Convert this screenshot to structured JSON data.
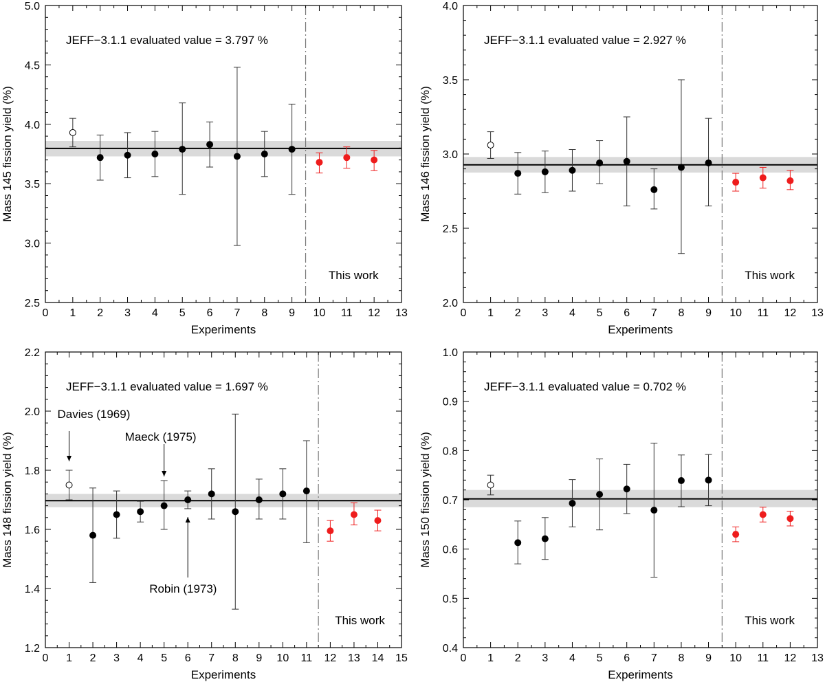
{
  "chart_data": [
    {
      "type": "scatter",
      "title": "",
      "xlabel": "Experiments",
      "ylabel": "Mass 145 fission yield (%)",
      "xlim": [
        0,
        13
      ],
      "ylim": [
        2.5,
        5.0
      ],
      "xticks": [
        "0",
        "1",
        "2",
        "3",
        "4",
        "5",
        "6",
        "7",
        "8",
        "9",
        "10",
        "11",
        "12",
        "13"
      ],
      "yticks": [
        "2.5",
        "3.0",
        "3.5",
        "4.0",
        "4.5",
        "5.0"
      ],
      "reference": {
        "label": "JEFF−3.1.1 evaluated value = 3.797 %",
        "value": 3.797,
        "band": [
          3.73,
          3.86
        ]
      },
      "divider_x": 9.5,
      "work_label": "This work",
      "points": [
        {
          "x": 1,
          "y": 3.93,
          "lo": 3.81,
          "hi": 4.05,
          "style": "open"
        },
        {
          "x": 2,
          "y": 3.72,
          "lo": 3.53,
          "hi": 3.91,
          "style": "filled"
        },
        {
          "x": 3,
          "y": 3.74,
          "lo": 3.55,
          "hi": 3.93,
          "style": "filled"
        },
        {
          "x": 4,
          "y": 3.75,
          "lo": 3.56,
          "hi": 3.94,
          "style": "filled"
        },
        {
          "x": 5,
          "y": 3.79,
          "lo": 3.41,
          "hi": 4.18,
          "style": "filled"
        },
        {
          "x": 6,
          "y": 3.83,
          "lo": 3.64,
          "hi": 4.02,
          "style": "filled"
        },
        {
          "x": 7,
          "y": 3.73,
          "lo": 2.98,
          "hi": 4.48,
          "style": "filled"
        },
        {
          "x": 8,
          "y": 3.75,
          "lo": 3.56,
          "hi": 3.94,
          "style": "filled"
        },
        {
          "x": 9,
          "y": 3.79,
          "lo": 3.41,
          "hi": 4.17,
          "style": "filled"
        },
        {
          "x": 10,
          "y": 3.68,
          "lo": 3.59,
          "hi": 3.76,
          "style": "red"
        },
        {
          "x": 11,
          "y": 3.72,
          "lo": 3.63,
          "hi": 3.81,
          "style": "red"
        },
        {
          "x": 12,
          "y": 3.7,
          "lo": 3.61,
          "hi": 3.78,
          "style": "red"
        }
      ],
      "annotations": []
    },
    {
      "type": "scatter",
      "title": "",
      "xlabel": "Experiments",
      "ylabel": "Mass 146 fission yield (%)",
      "xlim": [
        0,
        13
      ],
      "ylim": [
        2.0,
        4.0
      ],
      "xticks": [
        "0",
        "1",
        "2",
        "3",
        "4",
        "5",
        "6",
        "7",
        "8",
        "9",
        "10",
        "11",
        "12",
        "13"
      ],
      "yticks": [
        "2.0",
        "2.5",
        "3.0",
        "3.5",
        "4.0"
      ],
      "reference": {
        "label": "JEFF−3.1.1 evaluated value = 2.927 %",
        "value": 2.927,
        "band": [
          2.875,
          2.98
        ]
      },
      "divider_x": 9.5,
      "work_label": "This work",
      "points": [
        {
          "x": 1,
          "y": 3.06,
          "lo": 2.97,
          "hi": 3.15,
          "style": "open"
        },
        {
          "x": 2,
          "y": 2.87,
          "lo": 2.73,
          "hi": 3.01,
          "style": "filled"
        },
        {
          "x": 3,
          "y": 2.88,
          "lo": 2.74,
          "hi": 3.02,
          "style": "filled"
        },
        {
          "x": 4,
          "y": 2.89,
          "lo": 2.75,
          "hi": 3.03,
          "style": "filled"
        },
        {
          "x": 5,
          "y": 2.94,
          "lo": 2.8,
          "hi": 3.09,
          "style": "filled"
        },
        {
          "x": 6,
          "y": 2.95,
          "lo": 2.65,
          "hi": 3.25,
          "style": "filled"
        },
        {
          "x": 7,
          "y": 2.76,
          "lo": 2.63,
          "hi": 2.9,
          "style": "filled"
        },
        {
          "x": 8,
          "y": 2.91,
          "lo": 2.33,
          "hi": 3.5,
          "style": "filled"
        },
        {
          "x": 9,
          "y": 2.94,
          "lo": 2.65,
          "hi": 3.24,
          "style": "filled"
        },
        {
          "x": 10,
          "y": 2.81,
          "lo": 2.75,
          "hi": 2.87,
          "style": "red"
        },
        {
          "x": 11,
          "y": 2.84,
          "lo": 2.77,
          "hi": 2.91,
          "style": "red"
        },
        {
          "x": 12,
          "y": 2.82,
          "lo": 2.76,
          "hi": 2.89,
          "style": "red"
        }
      ],
      "annotations": []
    },
    {
      "type": "scatter",
      "title": "",
      "xlabel": "Experiments",
      "ylabel": "Mass 148 fission yield (%)",
      "xlim": [
        0,
        15
      ],
      "ylim": [
        1.2,
        2.2
      ],
      "xticks": [
        "0",
        "1",
        "2",
        "3",
        "4",
        "5",
        "6",
        "7",
        "8",
        "9",
        "10",
        "11",
        "12",
        "13",
        "14",
        "15"
      ],
      "yticks": [
        "1.2",
        "1.4",
        "1.6",
        "1.8",
        "2.0",
        "2.2"
      ],
      "reference": {
        "label": "JEFF−3.1.1 evaluated value = 1.697 %",
        "value": 1.697,
        "band": [
          1.675,
          1.72
        ]
      },
      "divider_x": 11.5,
      "work_label": "This work",
      "points": [
        {
          "x": 1,
          "y": 1.75,
          "lo": 1.7,
          "hi": 1.8,
          "style": "open"
        },
        {
          "x": 2,
          "y": 1.58,
          "lo": 1.42,
          "hi": 1.74,
          "style": "filled"
        },
        {
          "x": 3,
          "y": 1.65,
          "lo": 1.57,
          "hi": 1.73,
          "style": "filled"
        },
        {
          "x": 4,
          "y": 1.66,
          "lo": 1.625,
          "hi": 1.695,
          "style": "filled"
        },
        {
          "x": 5,
          "y": 1.68,
          "lo": 1.6,
          "hi": 1.765,
          "style": "filled"
        },
        {
          "x": 6,
          "y": 1.7,
          "lo": 1.67,
          "hi": 1.73,
          "style": "filled"
        },
        {
          "x": 7,
          "y": 1.72,
          "lo": 1.635,
          "hi": 1.805,
          "style": "filled"
        },
        {
          "x": 8,
          "y": 1.66,
          "lo": 1.33,
          "hi": 1.99,
          "style": "filled"
        },
        {
          "x": 9,
          "y": 1.7,
          "lo": 1.635,
          "hi": 1.77,
          "style": "filled"
        },
        {
          "x": 10,
          "y": 1.72,
          "lo": 1.635,
          "hi": 1.805,
          "style": "filled"
        },
        {
          "x": 11,
          "y": 1.73,
          "lo": 1.555,
          "hi": 1.9,
          "style": "filled"
        },
        {
          "x": 12,
          "y": 1.595,
          "lo": 1.56,
          "hi": 1.63,
          "style": "red"
        },
        {
          "x": 13,
          "y": 1.65,
          "lo": 1.615,
          "hi": 1.69,
          "style": "red"
        },
        {
          "x": 14,
          "y": 1.63,
          "lo": 1.595,
          "hi": 1.665,
          "style": "red"
        }
      ],
      "annotations": [
        {
          "text": "Davies (1969)",
          "point_x": 1,
          "side": "above"
        },
        {
          "text": "Maeck (1975)",
          "point_x": 5,
          "side": "above"
        },
        {
          "text": "Robin (1973)",
          "point_x": 6,
          "side": "below"
        }
      ]
    },
    {
      "type": "scatter",
      "title": "",
      "xlabel": "Experiments",
      "ylabel": "Mass 150 fission yield (%)",
      "xlim": [
        0,
        13
      ],
      "ylim": [
        0.4,
        1.0
      ],
      "xticks": [
        "0",
        "1",
        "2",
        "3",
        "4",
        "5",
        "6",
        "7",
        "8",
        "9",
        "10",
        "11",
        "12",
        "13"
      ],
      "yticks": [
        "0.4",
        "0.5",
        "0.6",
        "0.7",
        "0.8",
        "0.9",
        "1.0"
      ],
      "reference": {
        "label": "JEFF−3.1.1 evaluated value = 0.702 %",
        "value": 0.702,
        "band": [
          0.685,
          0.72
        ]
      },
      "divider_x": 9.5,
      "work_label": "This work",
      "points": [
        {
          "x": 1,
          "y": 0.73,
          "lo": 0.71,
          "hi": 0.75,
          "style": "open"
        },
        {
          "x": 2,
          "y": 0.613,
          "lo": 0.57,
          "hi": 0.657,
          "style": "filled"
        },
        {
          "x": 3,
          "y": 0.621,
          "lo": 0.579,
          "hi": 0.664,
          "style": "filled"
        },
        {
          "x": 4,
          "y": 0.693,
          "lo": 0.645,
          "hi": 0.741,
          "style": "filled"
        },
        {
          "x": 5,
          "y": 0.711,
          "lo": 0.639,
          "hi": 0.783,
          "style": "filled"
        },
        {
          "x": 6,
          "y": 0.722,
          "lo": 0.672,
          "hi": 0.772,
          "style": "filled"
        },
        {
          "x": 7,
          "y": 0.679,
          "lo": 0.543,
          "hi": 0.815,
          "style": "filled"
        },
        {
          "x": 8,
          "y": 0.739,
          "lo": 0.686,
          "hi": 0.791,
          "style": "filled"
        },
        {
          "x": 9,
          "y": 0.74,
          "lo": 0.688,
          "hi": 0.792,
          "style": "filled"
        },
        {
          "x": 10,
          "y": 0.63,
          "lo": 0.615,
          "hi": 0.645,
          "style": "red"
        },
        {
          "x": 11,
          "y": 0.67,
          "lo": 0.655,
          "hi": 0.685,
          "style": "red"
        },
        {
          "x": 12,
          "y": 0.662,
          "lo": 0.647,
          "hi": 0.677,
          "style": "red"
        }
      ],
      "annotations": []
    }
  ]
}
